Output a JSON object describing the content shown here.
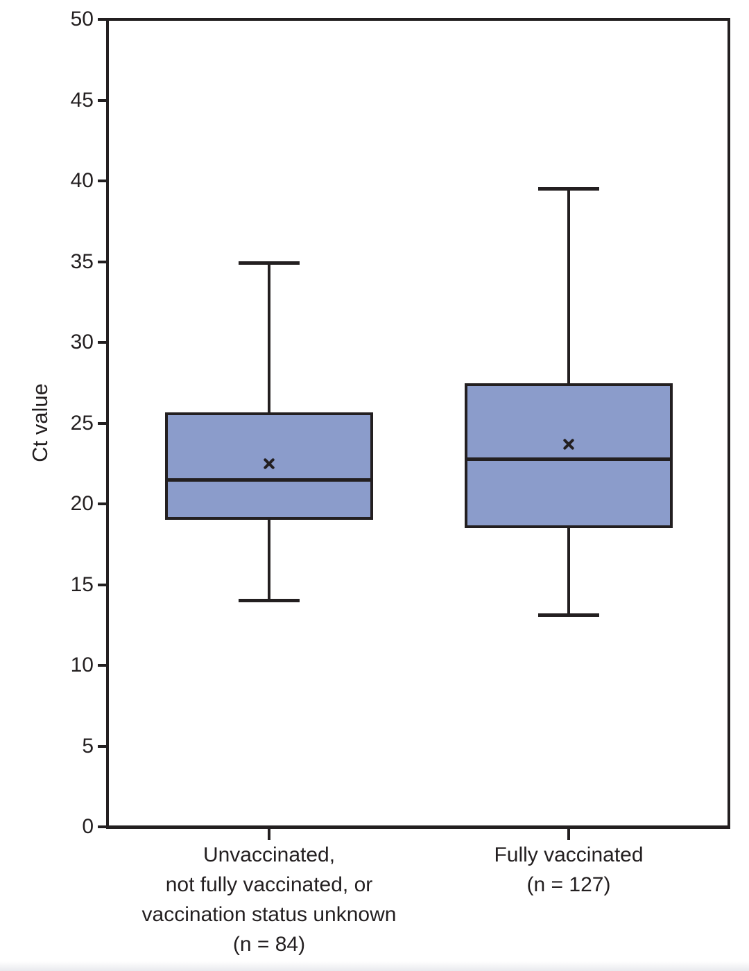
{
  "chart_data": {
    "type": "boxplot",
    "title": "",
    "xlabel": "",
    "ylabel": "Ct value",
    "ylim": [
      0,
      50
    ],
    "yticks": [
      0,
      5,
      10,
      15,
      20,
      25,
      30,
      35,
      40,
      45,
      50
    ],
    "grid": false,
    "legend": false,
    "mean_marker": "x-cross",
    "colors": {
      "box_fill": "#8B9CCB",
      "stroke": "#231f20",
      "text": "#231f20",
      "bottom_strip": "#e9eaee"
    },
    "categories": [
      {
        "label_lines": [
          "Unvaccinated,",
          "not fully vaccinated, or",
          "vaccination status unknown",
          "(n = 84)"
        ],
        "n": 84,
        "whisker_low": 14.0,
        "q1": 19.1,
        "median": 21.5,
        "mean": 22.5,
        "q3": 25.6,
        "whisker_high": 34.9
      },
      {
        "label_lines": [
          "Fully vaccinated",
          "(n = 127)"
        ],
        "n": 127,
        "whisker_low": 13.1,
        "q1": 18.6,
        "median": 22.8,
        "mean": 23.7,
        "q3": 27.4,
        "whisker_high": 39.5
      }
    ]
  }
}
